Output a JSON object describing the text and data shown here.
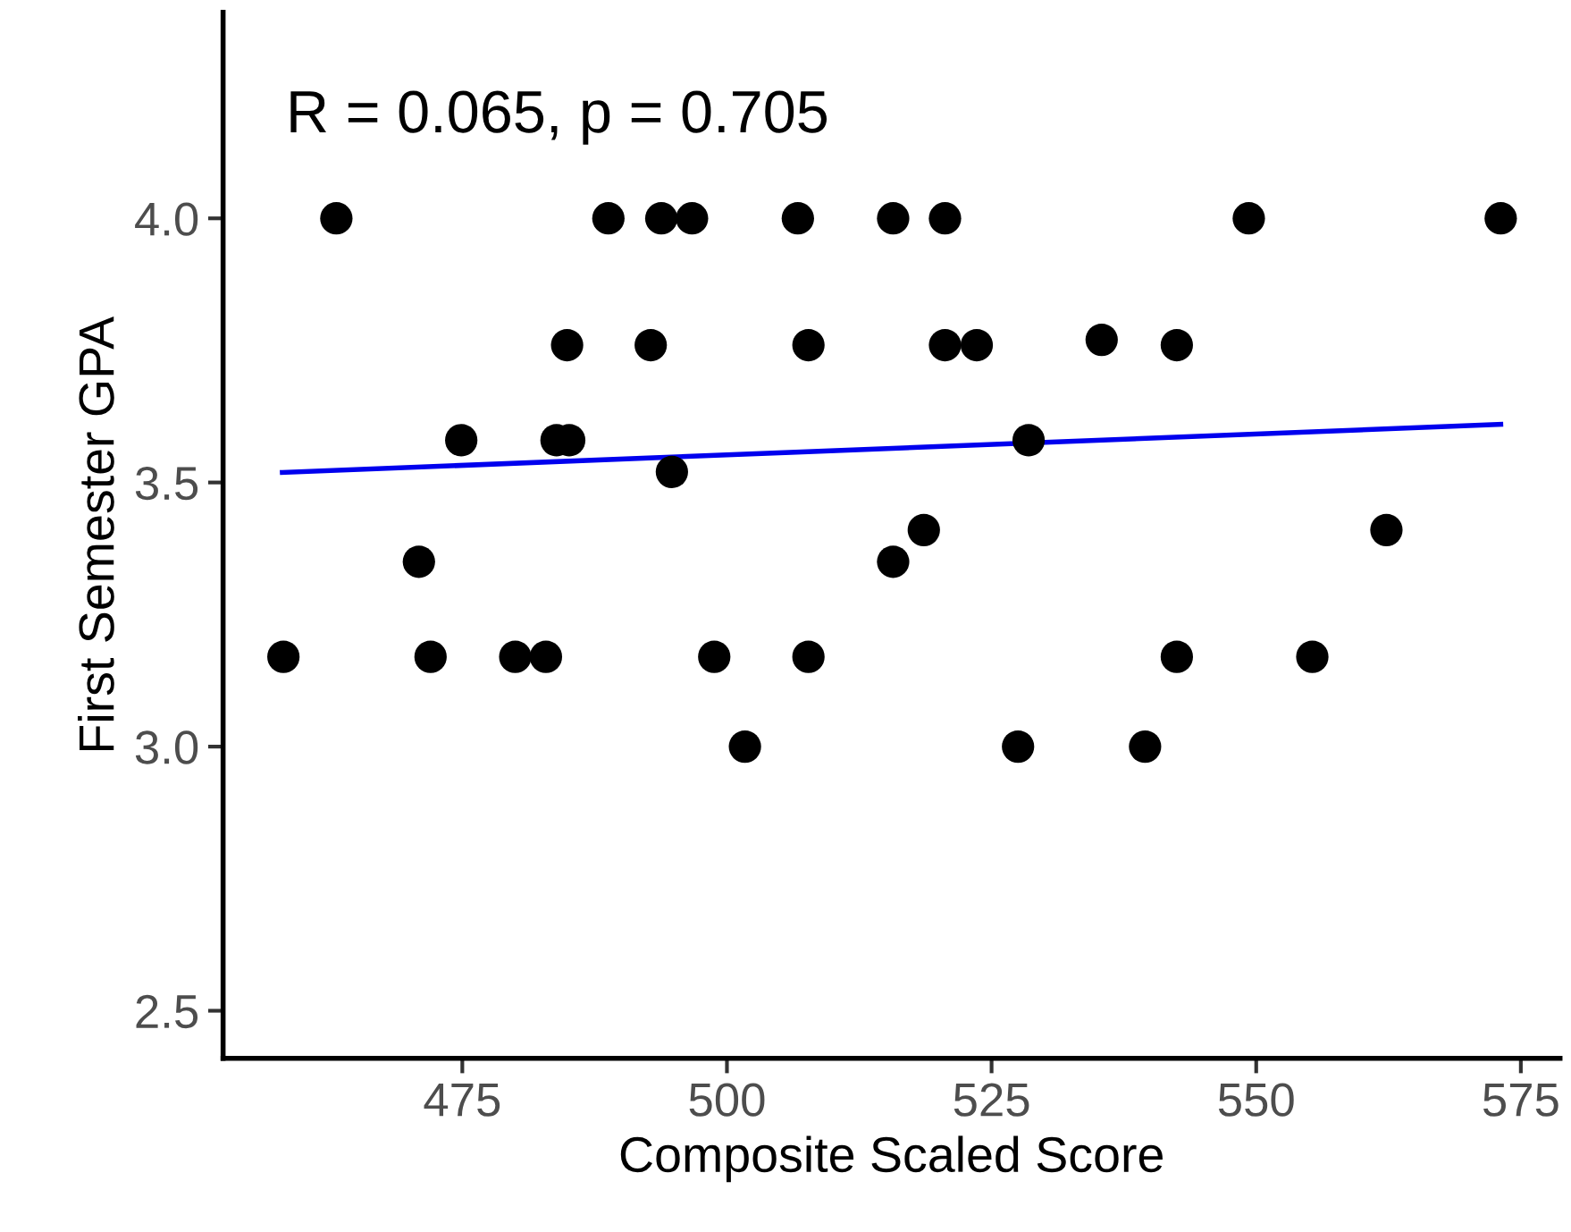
{
  "chart_data": {
    "type": "scatter",
    "xlabel": "Composite Scaled Score",
    "ylabel": "First Semester GPA",
    "annotations": [
      "R = 0.065, p = 0.705"
    ],
    "xlim": [
      452.4,
      578.7
    ],
    "ylim": [
      2.41,
      4.39
    ],
    "xticks": [
      475,
      500,
      525,
      550,
      575
    ],
    "yticks": [
      {
        "value": 2.5,
        "label": "2.5"
      },
      {
        "value": 3.0,
        "label": "3.0"
      },
      {
        "value": 3.5,
        "label": "3.5"
      },
      {
        "value": 4.0,
        "label": "4.0"
      }
    ],
    "grid": false,
    "legend": false,
    "marker": "circle",
    "series": [
      {
        "color": "#000000",
        "x": [
          463.1,
          488.8,
          493.8,
          496.7,
          506.7,
          515.7,
          520.6,
          549.3,
          573.1,
          484.9,
          492.8,
          507.7,
          520.6,
          523.6,
          535.4,
          542.5,
          474.9,
          483.9,
          485.1,
          494.8,
          528.5,
          470.9,
          515.7,
          518.6,
          562.3,
          458.1,
          472.0,
          480.0,
          482.9,
          498.8,
          507.7,
          542.5,
          555.3,
          501.7,
          527.5,
          539.5
        ],
        "values": [
          4.0,
          4.0,
          4.0,
          4.0,
          4.0,
          4.0,
          4.0,
          4.0,
          4.0,
          3.76,
          3.76,
          3.76,
          3.76,
          3.76,
          3.77,
          3.76,
          3.58,
          3.58,
          3.58,
          3.52,
          3.58,
          3.35,
          3.35,
          3.41,
          3.41,
          3.17,
          3.17,
          3.17,
          3.17,
          3.17,
          3.17,
          3.17,
          3.17,
          3.0,
          3.0,
          3.0
        ]
      },
      {
        "type": "line",
        "color": "#0000ee",
        "x": [
          458.0,
          573.1
        ],
        "values": [
          3.519,
          3.61
        ],
        "line_style": "solid",
        "marker": "none"
      }
    ]
  }
}
